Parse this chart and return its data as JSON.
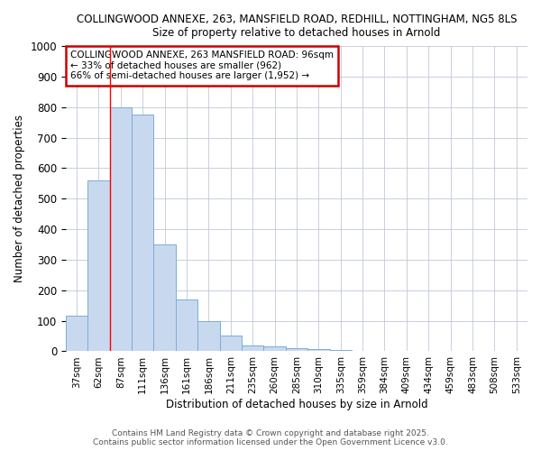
{
  "title_line1": "COLLINGWOOD ANNEXE, 263, MANSFIELD ROAD, REDHILL, NOTTINGHAM, NG5 8LS",
  "title_line2": "Size of property relative to detached houses in Arnold",
  "xlabel": "Distribution of detached houses by size in Arnold",
  "ylabel": "Number of detached properties",
  "categories": [
    "37sqm",
    "62sqm",
    "87sqm",
    "111sqm",
    "136sqm",
    "161sqm",
    "186sqm",
    "211sqm",
    "235sqm",
    "260sqm",
    "285sqm",
    "310sqm",
    "335sqm",
    "359sqm",
    "384sqm",
    "409sqm",
    "434sqm",
    "459sqm",
    "483sqm",
    "508sqm",
    "533sqm"
  ],
  "values": [
    117,
    560,
    800,
    775,
    350,
    170,
    100,
    53,
    20,
    15,
    10,
    8,
    5,
    0,
    0,
    0,
    0,
    0,
    0,
    0,
    0
  ],
  "bar_color": "#c8d9ef",
  "bar_edge_color": "#7aadd4",
  "red_line_x": 2.0,
  "annotation_text": "COLLINGWOOD ANNEXE, 263 MANSFIELD ROAD: 96sqm\n← 33% of detached houses are smaller (962)\n66% of semi-detached houses are larger (1,952) →",
  "annotation_box_color": "#ffffff",
  "annotation_edge_color": "#cc0000",
  "ylim": [
    0,
    1000
  ],
  "yticks": [
    0,
    100,
    200,
    300,
    400,
    500,
    600,
    700,
    800,
    900,
    1000
  ],
  "footer_line1": "Contains HM Land Registry data © Crown copyright and database right 2025.",
  "footer_line2": "Contains public sector information licensed under the Open Government Licence v3.0.",
  "background_color": "#ffffff",
  "grid_color": "#c0c8d8"
}
